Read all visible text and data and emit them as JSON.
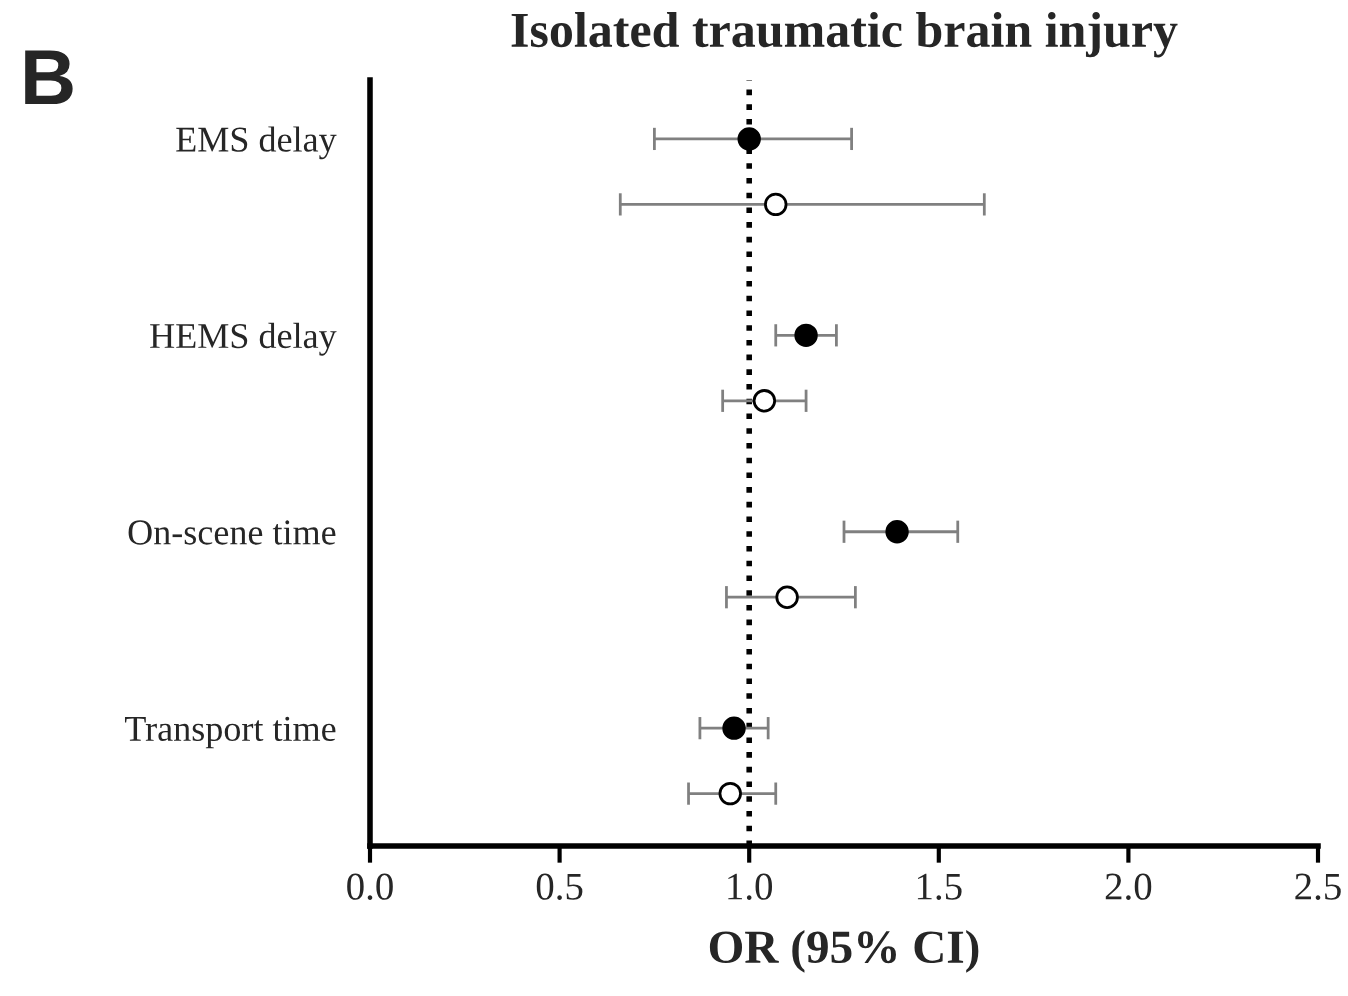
{
  "chart_data": {
    "type": "scatter",
    "orientation": "horizontal",
    "title": "Isolated traumatic brain injury",
    "xlabel": "OR (95% CI)",
    "annotations": [
      "B"
    ],
    "categories": [
      "EMS delay",
      null,
      null,
      "HEMS delay",
      null,
      null,
      "On-scene time",
      null,
      null,
      "Transport time",
      null
    ],
    "marker": "circle",
    "series": [
      {
        "color": "#000000",
        "values": [
          1.0,
          null,
          null,
          1.15,
          null,
          null,
          1.39,
          null,
          null,
          0.96,
          null
        ],
        "errors": [
          [
            0.75,
            1.27
          ],
          null,
          null,
          [
            1.07,
            1.23
          ],
          null,
          null,
          [
            1.25,
            1.55
          ],
          null,
          null,
          [
            0.87,
            1.05
          ],
          null
        ]
      },
      {
        "color": "#ffffff",
        "values": [
          null,
          1.07,
          null,
          null,
          1.04,
          null,
          null,
          1.1,
          null,
          null,
          0.95
        ],
        "errors": [
          null,
          [
            0.66,
            1.62
          ],
          null,
          null,
          [
            0.93,
            1.15
          ],
          null,
          null,
          [
            0.94,
            1.28
          ],
          null,
          null,
          [
            0.84,
            1.07
          ]
        ]
      }
    ],
    "xlim": [
      0,
      2.5
    ],
    "xticks": [
      {
        "value": 0,
        "label": "0.0"
      },
      0.5,
      {
        "value": 1,
        "label": "1.0"
      },
      1.5,
      {
        "value": 2,
        "label": "2.0"
      },
      2.5
    ],
    "ref_lines": [
      {
        "axis": "x",
        "value": 1,
        "color": "#000000",
        "line_style": "dotted"
      }
    ],
    "grid": false,
    "legend": false
  }
}
